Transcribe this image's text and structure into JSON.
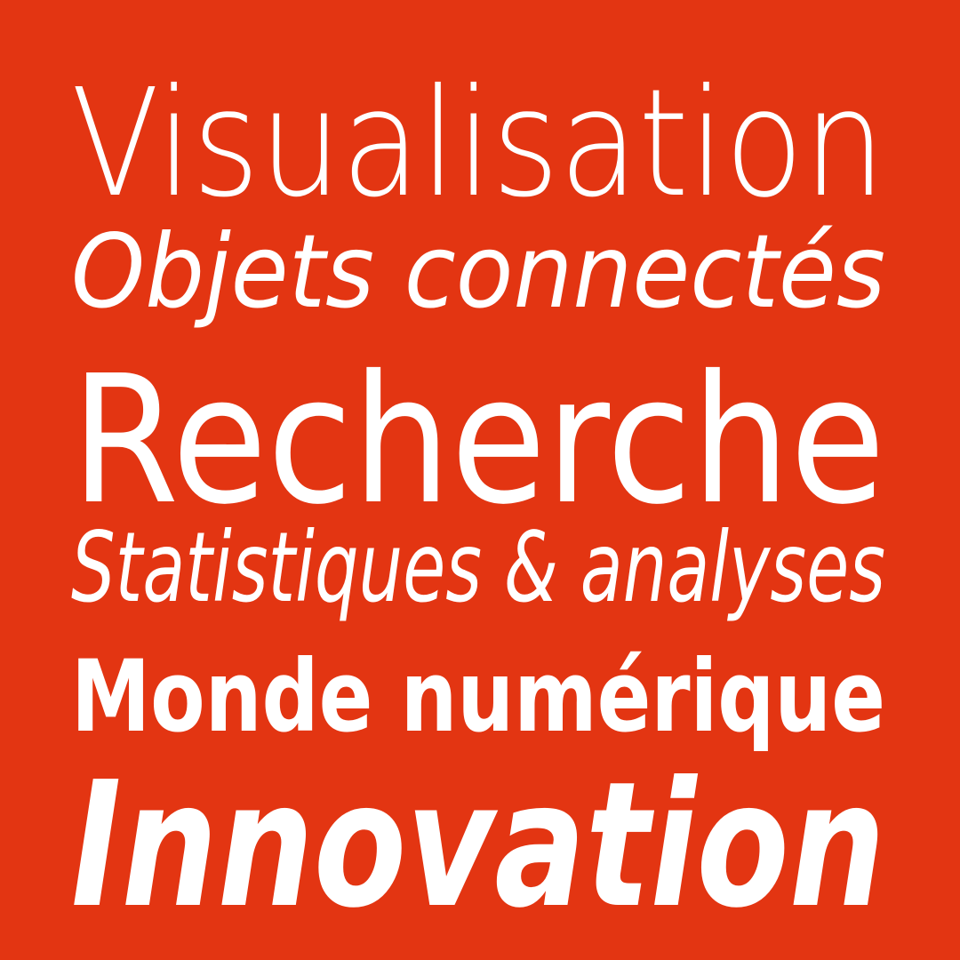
{
  "colors": {
    "background": "#e33512",
    "text": "#ffffff"
  },
  "lines": [
    "Visualisation",
    "Objets connectés",
    "Recherche",
    "Statistiques & analyses",
    "Monde numérique",
    "Innovation"
  ]
}
